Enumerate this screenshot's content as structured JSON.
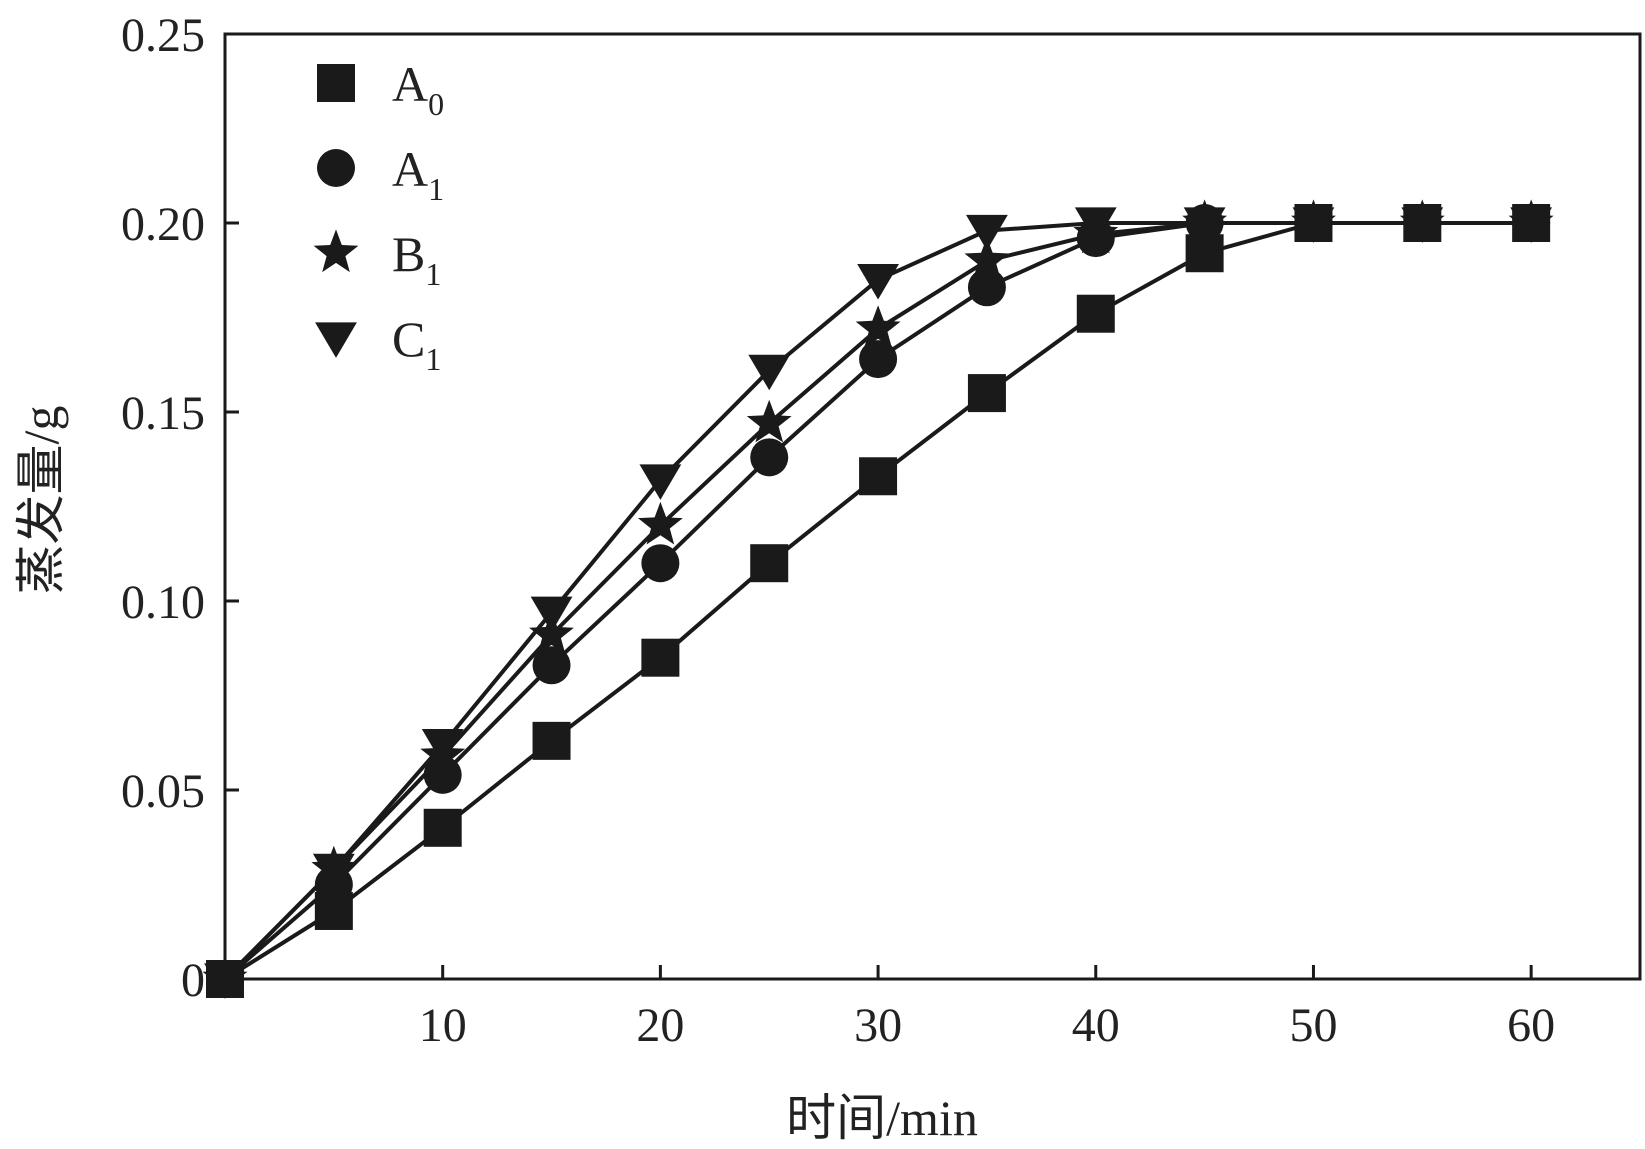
{
  "chart_data": {
    "type": "line",
    "xlabel": "时间/min",
    "ylabel": "蒸发量/g",
    "xlim": [
      0,
      65
    ],
    "ylim": [
      0,
      0.25
    ],
    "x_ticks": [
      10,
      20,
      30,
      40,
      50,
      60
    ],
    "x_tick_labels": [
      "10",
      "20",
      "30",
      "40",
      "50",
      "60"
    ],
    "y_ticks": [
      0,
      0.05,
      0.1,
      0.15,
      0.2,
      0.25
    ],
    "y_tick_labels": [
      "0",
      "0.05",
      "0.10",
      "0.15",
      "0.20",
      "0.25"
    ],
    "grid": false,
    "legend_position": "top-left",
    "x": [
      0,
      5,
      10,
      15,
      20,
      25,
      30,
      35,
      40,
      45,
      50,
      55,
      60
    ],
    "series": [
      {
        "name": "A",
        "subscript": "0",
        "marker": "square",
        "values": [
          0,
          0.018,
          0.04,
          0.063,
          0.085,
          0.11,
          0.133,
          0.155,
          0.176,
          0.192,
          0.2,
          0.2,
          0.2
        ]
      },
      {
        "name": "A",
        "subscript": "1",
        "marker": "circle",
        "values": [
          0,
          0.025,
          0.054,
          0.083,
          0.11,
          0.138,
          0.164,
          0.183,
          0.196,
          0.2,
          0.2,
          0.2,
          0.2
        ]
      },
      {
        "name": "B",
        "subscript": "1",
        "marker": "star",
        "values": [
          0,
          0.029,
          0.059,
          0.091,
          0.12,
          0.147,
          0.172,
          0.19,
          0.197,
          0.2,
          0.2,
          0.2,
          0.2
        ]
      },
      {
        "name": "C",
        "subscript": "1",
        "marker": "triangle-down",
        "values": [
          0,
          0.029,
          0.062,
          0.097,
          0.132,
          0.161,
          0.185,
          0.198,
          0.2,
          0.2,
          0.2,
          0.2,
          0.2
        ]
      }
    ]
  }
}
